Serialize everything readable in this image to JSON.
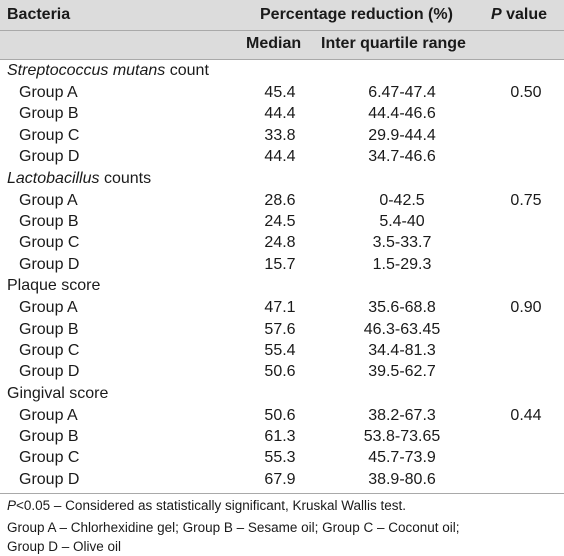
{
  "header": {
    "col_bacteria": "Bacteria",
    "col_percentage": "Percentage reduction (%)",
    "col_p_italic": "P",
    "col_p_rest": " value",
    "sub_median": "Median",
    "sub_iqr": "Inter quartile range"
  },
  "sections": [
    {
      "title_italic": "Streptococcus mutans",
      "title_rest": " count",
      "rows": [
        {
          "group": "Group A",
          "median": "45.4",
          "iqr": "6.47-47.4",
          "p": "0.50"
        },
        {
          "group": "Group B",
          "median": "44.4",
          "iqr": "44.4-46.6",
          "p": ""
        },
        {
          "group": "Group C",
          "median": "33.8",
          "iqr": "29.9-44.4",
          "p": ""
        },
        {
          "group": "Group D",
          "median": "44.4",
          "iqr": "34.7-46.6",
          "p": ""
        }
      ]
    },
    {
      "title_italic": "Lactobacillus",
      "title_rest": " counts",
      "rows": [
        {
          "group": "Group A",
          "median": "28.6",
          "iqr": "0-42.5",
          "p": "0.75"
        },
        {
          "group": "Group B",
          "median": "24.5",
          "iqr": "5.4-40",
          "p": ""
        },
        {
          "group": "Group C",
          "median": "24.8",
          "iqr": "3.5-33.7",
          "p": ""
        },
        {
          "group": "Group D",
          "median": "15.7",
          "iqr": "1.5-29.3",
          "p": ""
        }
      ]
    },
    {
      "title_italic": "",
      "title_rest": "Plaque score",
      "rows": [
        {
          "group": "Group A",
          "median": "47.1",
          "iqr": "35.6-68.8",
          "p": "0.90"
        },
        {
          "group": "Group B",
          "median": "57.6",
          "iqr": "46.3-63.45",
          "p": ""
        },
        {
          "group": "Group C",
          "median": "55.4",
          "iqr": "34.4-81.3",
          "p": ""
        },
        {
          "group": "Group D",
          "median": "50.6",
          "iqr": "39.5-62.7",
          "p": ""
        }
      ]
    },
    {
      "title_italic": "",
      "title_rest": "Gingival score",
      "rows": [
        {
          "group": "Group A",
          "median": "50.6",
          "iqr": "38.2-67.3",
          "p": "0.44"
        },
        {
          "group": "Group B",
          "median": "61.3",
          "iqr": "53.8-73.65",
          "p": ""
        },
        {
          "group": "Group C",
          "median": "55.3",
          "iqr": "45.7-73.9",
          "p": ""
        },
        {
          "group": "Group D",
          "median": "67.9",
          "iqr": "38.9-80.6",
          "p": ""
        }
      ]
    }
  ],
  "footnotes": {
    "line1_italic": "P",
    "line1_rest": "<0.05 – Considered as statistically significant, Kruskal Wallis test.",
    "line2": "Group A – Chlorhexidine gel; Group B – Sesame oil; Group C – Coconut oil;",
    "line3": "Group D – Olive oil"
  }
}
